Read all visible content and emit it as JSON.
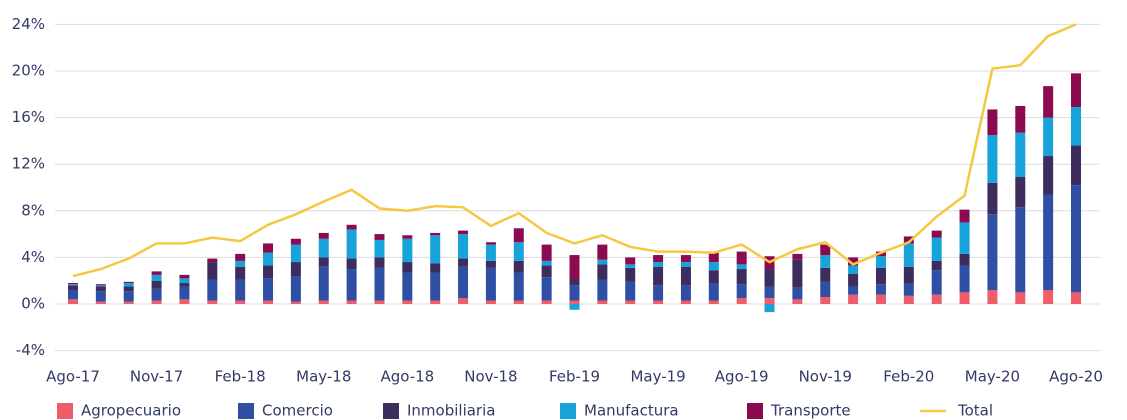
{
  "chart_data": {
    "type": "bar",
    "stacked": true,
    "categories": [
      "Ago-17",
      null,
      null,
      "Nov-17",
      null,
      null,
      "Feb-18",
      null,
      null,
      "May-18",
      null,
      null,
      "Ago-18",
      null,
      null,
      "Nov-18",
      null,
      null,
      "Feb-19",
      null,
      null,
      "May-19",
      null,
      null,
      "Ago-19",
      null,
      null,
      "Nov-19",
      null,
      null,
      "Feb-20",
      null,
      null,
      "May-20",
      null,
      null,
      "Ago-20"
    ],
    "series": [
      {
        "name": "Agropecuario",
        "color": "#f05d6a",
        "values": [
          0.4,
          0.2,
          0.2,
          0.3,
          0.4,
          0.3,
          0.3,
          0.3,
          0.2,
          0.3,
          0.3,
          0.3,
          0.3,
          0.3,
          0.5,
          0.3,
          0.3,
          0.3,
          0.3,
          0.3,
          0.3,
          0.3,
          0.3,
          0.3,
          0.5,
          0.5,
          0.4,
          0.6,
          0.8,
          0.8,
          0.7,
          0.8,
          1.0,
          1.2,
          1.0,
          1.2,
          1.0
        ]
      },
      {
        "name": "Comercio",
        "color": "#2e4fa3",
        "values": [
          0.8,
          0.9,
          0.9,
          1.0,
          1.1,
          1.8,
          1.8,
          1.9,
          2.2,
          2.9,
          2.7,
          2.8,
          2.4,
          2.4,
          2.7,
          2.8,
          2.4,
          2.0,
          1.3,
          1.8,
          1.6,
          1.3,
          1.3,
          1.5,
          1.2,
          1.0,
          1.0,
          1.3,
          0.7,
          0.9,
          1.1,
          2.1,
          2.3,
          6.5,
          7.3,
          8.2,
          9.2
        ]
      },
      {
        "name": "Inmobiliaria",
        "color": "#3c2d5e",
        "values": [
          0.4,
          0.4,
          0.4,
          0.7,
          0.3,
          1.5,
          1.1,
          1.1,
          1.2,
          0.8,
          0.9,
          0.9,
          0.9,
          0.8,
          0.7,
          0.6,
          1.0,
          1.0,
          0.5,
          1.3,
          1.2,
          1.6,
          1.6,
          1.1,
          1.3,
          1.5,
          2.4,
          1.2,
          1.1,
          1.4,
          1.4,
          0.8,
          1.0,
          2.7,
          2.6,
          3.3,
          3.4
        ]
      },
      {
        "name": "Manufactura",
        "color": "#17a3d9",
        "values": [
          0.1,
          0.1,
          0.3,
          0.5,
          0.4,
          0,
          0.5,
          1.1,
          1.5,
          1.6,
          2.5,
          1.5,
          2.0,
          2.4,
          2.1,
          1.4,
          1.6,
          0.4,
          -0.5,
          0.4,
          0.3,
          0.4,
          0.4,
          0.7,
          0.4,
          -0.7,
          0,
          1.1,
          0.7,
          1.0,
          2.0,
          2.0,
          2.7,
          4.1,
          3.8,
          3.3,
          3.3
        ]
      },
      {
        "name": "Transporte",
        "color": "#8b0a50",
        "values": [
          0.1,
          0.1,
          0.1,
          0.3,
          0.3,
          0.3,
          0.6,
          0.8,
          0.5,
          0.5,
          0.4,
          0.5,
          0.3,
          0.2,
          0.3,
          0.2,
          1.2,
          1.4,
          2.1,
          1.3,
          0.6,
          0.6,
          0.6,
          0.8,
          1.1,
          1.1,
          0.5,
          0.9,
          0.7,
          0.4,
          0.6,
          0.6,
          1.1,
          2.2,
          2.3,
          2.7,
          2.9
        ]
      },
      {
        "name": "Total",
        "color": "#f5c842",
        "type": "line",
        "values": [
          2.4,
          3.0,
          3.9,
          5.2,
          5.2,
          5.7,
          5.4,
          6.8,
          7.7,
          8.8,
          9.8,
          8.2,
          8.0,
          8.4,
          8.3,
          6.7,
          7.8,
          6.1,
          5.2,
          5.9,
          4.9,
          4.5,
          4.5,
          4.4,
          5.1,
          3.6,
          4.7,
          5.3,
          3.4,
          4.4,
          5.3,
          7.5,
          9.3,
          20.2,
          20.5,
          23.0,
          24.0
        ]
      }
    ],
    "ylim": [
      -4,
      24
    ],
    "yticks": [
      {
        "value": -4,
        "label": "-4%"
      },
      {
        "value": 0,
        "label": "0%"
      },
      {
        "value": 4,
        "label": "4%"
      },
      {
        "value": 8,
        "label": "8%"
      },
      {
        "value": 12,
        "label": "12%"
      },
      {
        "value": 16,
        "label": "16%"
      },
      {
        "value": 20,
        "label": "20%"
      },
      {
        "value": 24,
        "label": "24%"
      }
    ],
    "grid": true,
    "legend": "bottom"
  }
}
